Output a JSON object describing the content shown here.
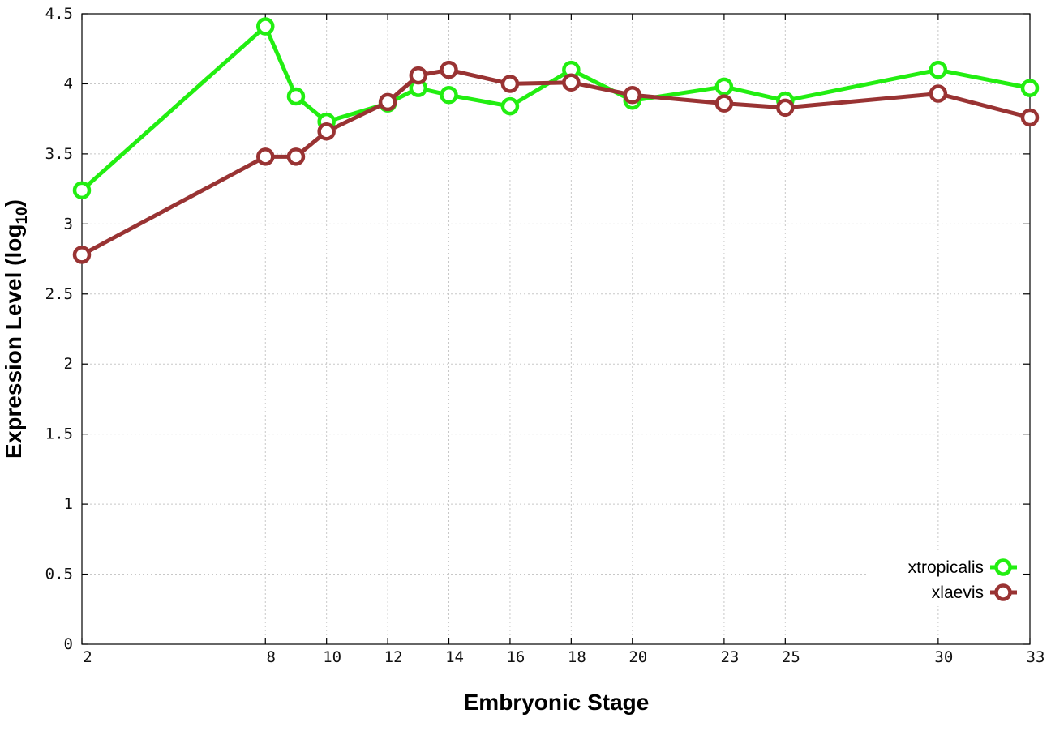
{
  "chart_data": {
    "type": "line",
    "xlabel": "Embryonic Stage",
    "ylabel_main": "Expression Level (log",
    "ylabel_sub": "10",
    "ylabel_close": ")",
    "xlim": [
      2,
      33
    ],
    "ylim": [
      0,
      4.5
    ],
    "x_ticks": [
      2,
      8,
      10,
      12,
      14,
      16,
      18,
      20,
      23,
      25,
      30,
      33
    ],
    "y_ticks": [
      {
        "value": 0,
        "label": "0"
      },
      {
        "value": 0.5,
        "label": "0.5"
      },
      {
        "value": 1,
        "label": "1"
      },
      {
        "value": 1.5,
        "label": "1.5"
      },
      {
        "value": 2,
        "label": "2"
      },
      {
        "value": 2.5,
        "label": "2.5"
      },
      {
        "value": 3,
        "label": "3"
      },
      {
        "value": 3.5,
        "label": "3.5"
      },
      {
        "value": 4,
        "label": "4"
      },
      {
        "value": 4.5,
        "label": "4.5"
      }
    ],
    "grid": true,
    "legend_position": "bottom-right",
    "x": [
      2,
      8,
      9,
      10,
      12,
      13,
      14,
      16,
      18,
      20,
      23,
      25,
      30,
      33
    ],
    "series": [
      {
        "name": "xtropicalis",
        "color": "#22ee11",
        "values": [
          3.24,
          4.41,
          3.91,
          3.73,
          3.86,
          3.97,
          3.92,
          3.84,
          4.1,
          3.88,
          3.98,
          3.88,
          4.1,
          3.97
        ]
      },
      {
        "name": "xlaevis",
        "color": "#993333",
        "values": [
          2.78,
          3.48,
          3.48,
          3.66,
          3.87,
          4.06,
          4.1,
          4.0,
          4.01,
          3.92,
          3.86,
          3.83,
          3.93,
          3.76
        ]
      }
    ]
  }
}
